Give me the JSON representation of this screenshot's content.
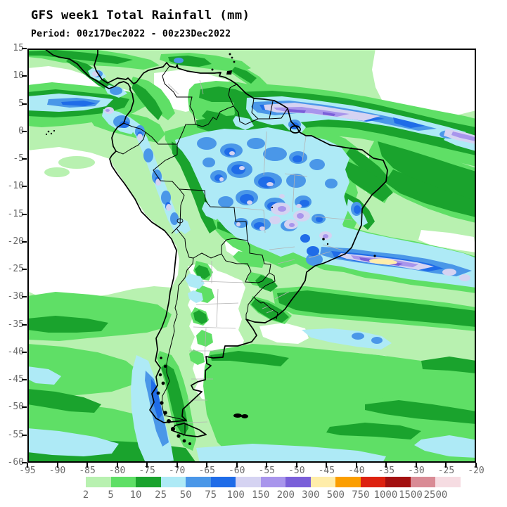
{
  "title": "GFS week1 Total Rainfall (mm)",
  "subtitle": "Period: 00z17Dec2022 - 00z23Dec2022",
  "colors": {
    "title": "#000000",
    "subtitle": "#000000",
    "axis_label": "#6a6a6a",
    "frame": "#000000",
    "coastline": "#000000",
    "country_border": "#000000",
    "state_border": "#b4b4b4",
    "dry": "#ffffff"
  },
  "axes": {
    "lat_ticks": [
      "15",
      "10",
      "5",
      "0",
      "-5",
      "-10",
      "-15",
      "-20",
      "-25",
      "-30",
      "-35",
      "-40",
      "-45",
      "-50",
      "-55",
      "-60"
    ],
    "lon_ticks": [
      "-95",
      "-90",
      "-85",
      "-80",
      "-75",
      "-70",
      "-65",
      "-60",
      "-55",
      "-50",
      "-45",
      "-40",
      "-35",
      "-30",
      "-25",
      "-20"
    ]
  },
  "colorbar": {
    "levels": [
      "2",
      "5",
      "10",
      "25",
      "50",
      "75",
      "100",
      "150",
      "200",
      "300",
      "500",
      "750",
      "1000",
      "1500",
      "2500"
    ],
    "colors": [
      "#b8f1b0",
      "#5fdf66",
      "#1aa32d",
      "#aeeaf6",
      "#4a97e8",
      "#1f6ce8",
      "#d5d3f2",
      "#a895ec",
      "#7a5fd9",
      "#ffedaa",
      "#fb9e00",
      "#dd2210",
      "#a31010",
      "#d98b95",
      "#f6dce2"
    ]
  }
}
